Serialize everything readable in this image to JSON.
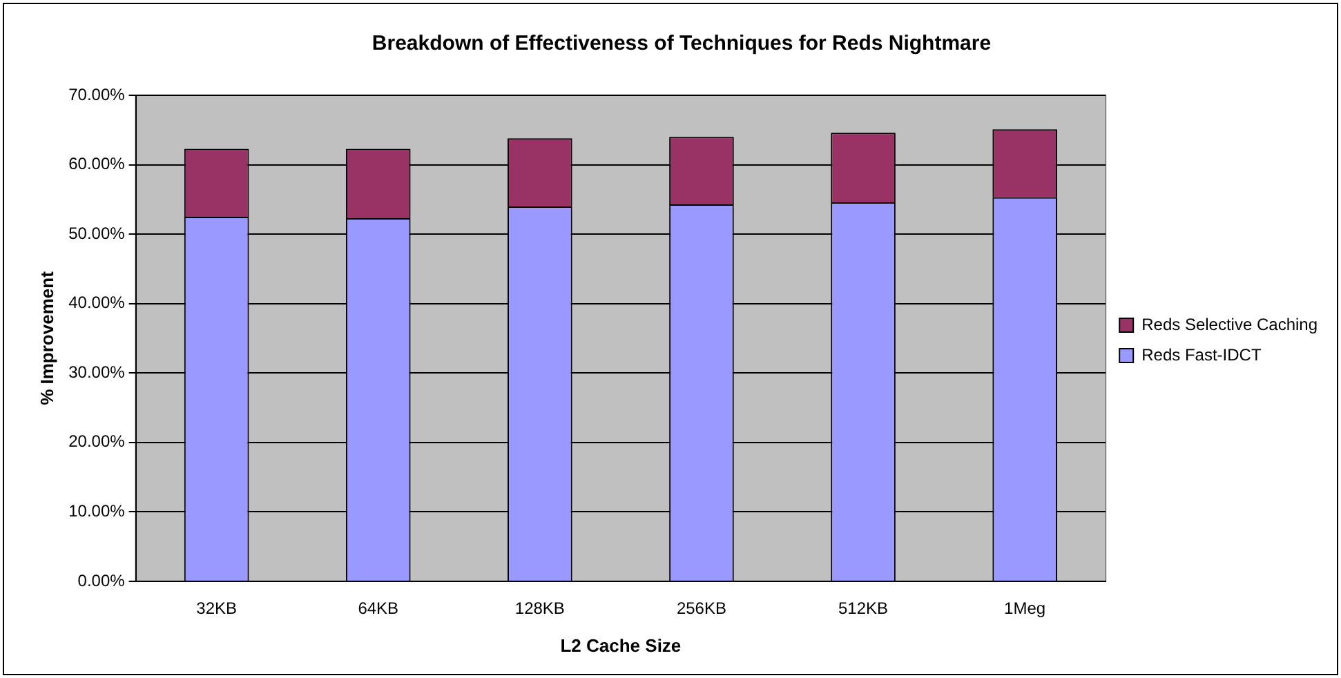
{
  "chart_data": {
    "type": "bar",
    "stacked": true,
    "title": "Breakdown of Effectiveness of Techniques for Reds Nightmare",
    "xlabel": "L2 Cache Size",
    "ylabel": "% Improvement",
    "categories": [
      "32KB",
      "64KB",
      "128KB",
      "256KB",
      "512KB",
      "1Meg"
    ],
    "series": [
      {
        "name": "Reds Fast-IDCT",
        "color": "#9999ff",
        "values": [
          52.5,
          52.3,
          54.0,
          54.3,
          54.6,
          55.3
        ]
      },
      {
        "name": "Reds Selective Caching",
        "color": "#993366",
        "values": [
          9.8,
          10.0,
          9.8,
          9.7,
          10.0,
          9.8
        ]
      }
    ],
    "ylim": [
      0,
      70
    ],
    "yticks": [
      {
        "value": 0,
        "label": "0.00%"
      },
      {
        "value": 10,
        "label": "10.00%"
      },
      {
        "value": 20,
        "label": "20.00%"
      },
      {
        "value": 30,
        "label": "30.00%"
      },
      {
        "value": 40,
        "label": "40.00%"
      },
      {
        "value": 50,
        "label": "50.00%"
      },
      {
        "value": 60,
        "label": "60.00%"
      },
      {
        "value": 70,
        "label": "70.00%"
      }
    ],
    "grid": "y",
    "legend": "right"
  }
}
